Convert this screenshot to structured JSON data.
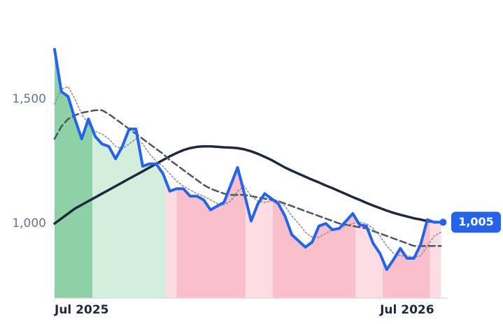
{
  "chart_data": {
    "type": "line",
    "x": [
      0,
      0.25,
      0.5,
      0.75,
      1,
      1.25,
      1.5,
      1.75,
      2,
      2.25,
      2.5,
      2.75,
      3,
      3.25,
      3.5,
      3.75,
      4,
      4.25,
      4.5,
      4.75,
      5,
      5.25,
      5.5,
      5.75,
      6,
      6.25,
      6.5,
      6.75,
      7,
      7.25,
      7.5,
      7.75,
      8,
      8.25,
      8.5,
      8.75,
      9,
      9.25,
      9.5,
      9.75,
      10,
      10.25,
      10.5,
      10.75,
      11,
      11.25,
      11.5,
      11.75,
      12,
      12.25,
      12.5,
      12.75,
      13,
      13.25,
      13.5,
      13.75,
      14,
      14.25
    ],
    "series": [
      {
        "color": "#1e293b",
        "width": 3.5,
        "dash": "none",
        "values": [
          1000,
          1020,
          1040,
          1060,
          1075,
          1090,
          1105,
          1120,
          1135,
          1150,
          1165,
          1180,
          1195,
          1210,
          1225,
          1240,
          1255,
          1270,
          1283,
          1295,
          1303,
          1308,
          1310,
          1310,
          1308,
          1306,
          1305,
          1303,
          1298,
          1290,
          1280,
          1268,
          1255,
          1240,
          1225,
          1212,
          1200,
          1188,
          1176,
          1165,
          1153,
          1142,
          1130,
          1118,
          1106,
          1095,
          1083,
          1072,
          1062,
          1052,
          1043,
          1035,
          1028,
          1021,
          1016,
          1010,
          1006,
          1005
        ]
      },
      {
        "color": "#4b5563",
        "width": 2.5,
        "dash": "9 5",
        "values": [
          1340,
          1390,
          1420,
          1435,
          1445,
          1450,
          1455,
          1455,
          1440,
          1420,
          1400,
          1380,
          1360,
          1340,
          1320,
          1300,
          1280,
          1255,
          1235,
          1215,
          1195,
          1175,
          1155,
          1140,
          1130,
          1120,
          1115,
          1115,
          1115,
          1110,
          1105,
          1100,
          1095,
          1090,
          1080,
          1070,
          1060,
          1050,
          1040,
          1030,
          1020,
          1010,
          1000,
          995,
          990,
          985,
          980,
          970,
          960,
          950,
          940,
          930,
          920,
          910,
          910,
          910,
          910,
          910
        ]
      },
      {
        "color": "#8a8f98",
        "width": 1.6,
        "dash": "2 3",
        "values": [
          1480,
          1540,
          1550,
          1500,
          1440,
          1400,
          1370,
          1360,
          1340,
          1310,
          1300,
          1320,
          1340,
          1320,
          1280,
          1250,
          1230,
          1200,
          1170,
          1150,
          1135,
          1120,
          1110,
          1095,
          1080,
          1075,
          1090,
          1130,
          1150,
          1110,
          1090,
          1085,
          1090,
          1090,
          1070,
          1030,
          1000,
          965,
          945,
          945,
          960,
          975,
          985,
          990,
          1000,
          1005,
          1000,
          980,
          950,
          910,
          880,
          870,
          870,
          865,
          870,
          910,
          950,
          965
        ]
      },
      {
        "color": "#2563eb",
        "width": 4,
        "dash": "none",
        "fill": true,
        "values": [
          1700,
          1530,
          1510,
          1420,
          1340,
          1420,
          1350,
          1320,
          1310,
          1260,
          1310,
          1380,
          1380,
          1230,
          1240,
          1240,
          1200,
          1130,
          1140,
          1140,
          1110,
          1110,
          1095,
          1055,
          1070,
          1085,
          1155,
          1225,
          1120,
          1010,
          1080,
          1120,
          1100,
          1080,
          1030,
          955,
          930,
          905,
          925,
          990,
          1000,
          975,
          980,
          1010,
          1040,
          995,
          990,
          920,
          880,
          815,
          855,
          900,
          860,
          860,
          915,
          1015,
          1005,
          1005
        ]
      }
    ],
    "regions": [
      {
        "start": 0,
        "end": 1.4,
        "color": "#8fd1a6"
      },
      {
        "start": 1.4,
        "end": 4.1,
        "color": "#d3eedc"
      },
      {
        "start": 4.1,
        "end": 4.5,
        "color": "#fddde3"
      },
      {
        "start": 4.5,
        "end": 7.05,
        "color": "#f9c0cb"
      },
      {
        "start": 7.05,
        "end": 8.05,
        "color": "#fddde3"
      },
      {
        "start": 8.05,
        "end": 11.1,
        "color": "#f9c0cb"
      },
      {
        "start": 11.1,
        "end": 12.1,
        "color": "#fddde3"
      },
      {
        "start": 12.1,
        "end": 13.85,
        "color": "#f9c0cb"
      },
      {
        "start": 13.85,
        "end": 14.3,
        "color": "#fddde3"
      }
    ],
    "end_label": {
      "value": 1005,
      "label": "1,005"
    },
    "xlim": [
      0,
      14.5
    ],
    "ylim": [
      700,
      1800
    ],
    "xticks": [
      {
        "value": 0,
        "label": "Jul 2025"
      },
      {
        "value": 12,
        "label": "Jul 2026"
      }
    ],
    "yticks": [
      {
        "value": 1000,
        "label": "1,000"
      },
      {
        "value": 1500,
        "label": "1,500"
      }
    ],
    "grid": false
  }
}
